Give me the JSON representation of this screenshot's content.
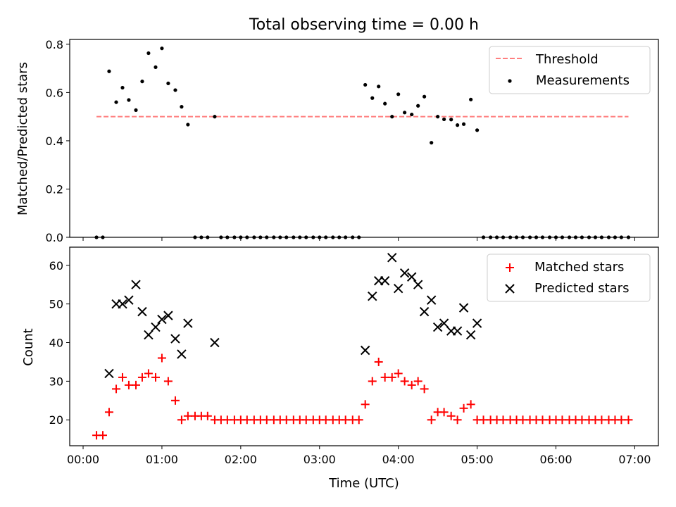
{
  "figure": {
    "title": "Total observing time = 0.00 h"
  },
  "chart_data": [
    {
      "type": "scatter",
      "ylabel": "Matched/Predicted stars",
      "ylim": [
        0,
        0.82
      ],
      "xlim": [
        -0.17,
        7.3
      ],
      "yticks": [
        0.0,
        0.2,
        0.4,
        0.6,
        0.8
      ],
      "ytick_labels": [
        "0.0",
        "0.2",
        "0.4",
        "0.6",
        "0.8"
      ],
      "grid": false,
      "legend": {
        "location": "top-right",
        "entries": [
          "Threshold",
          "Measurements"
        ]
      },
      "threshold": {
        "name": "Threshold",
        "y": 0.5,
        "x_range": [
          0.17,
          6.92
        ],
        "color": "#ff7f7f",
        "style": "dashed"
      },
      "series": [
        {
          "name": "Measurements",
          "marker": "dot",
          "color": "#000000",
          "x": [
            0.17,
            0.25,
            0.33,
            0.42,
            0.5,
            0.58,
            0.67,
            0.75,
            0.83,
            0.92,
            1.0,
            1.08,
            1.17,
            1.25,
            1.33,
            1.42,
            1.5,
            1.58,
            1.67,
            1.75,
            1.83,
            1.92,
            2.0,
            2.08,
            2.17,
            2.25,
            2.33,
            2.42,
            2.5,
            2.58,
            2.67,
            2.75,
            2.83,
            2.92,
            3.0,
            3.08,
            3.17,
            3.25,
            3.33,
            3.42,
            3.5,
            3.58,
            3.67,
            3.75,
            3.83,
            3.92,
            4.0,
            4.08,
            4.17,
            4.25,
            4.33,
            4.42,
            4.5,
            4.58,
            4.67,
            4.75,
            4.83,
            4.92,
            5.0,
            5.08,
            5.17,
            5.25,
            5.33,
            5.42,
            5.5,
            5.58,
            5.67,
            5.75,
            5.83,
            5.92,
            6.0,
            6.08,
            6.17,
            6.25,
            6.33,
            6.42,
            6.5,
            6.58,
            6.67,
            6.75,
            6.83,
            6.92
          ],
          "y": [
            0,
            0,
            0.688,
            0.56,
            0.62,
            0.569,
            0.527,
            0.646,
            0.763,
            0.705,
            0.783,
            0.638,
            0.61,
            0.541,
            0.467,
            0,
            0,
            0,
            0.5,
            0,
            0,
            0,
            0,
            0,
            0,
            0,
            0,
            0,
            0,
            0,
            0,
            0,
            0,
            0,
            0,
            0,
            0,
            0,
            0,
            0,
            0,
            0.632,
            0.577,
            0.625,
            0.554,
            0.5,
            0.593,
            0.517,
            0.509,
            0.545,
            0.583,
            0.392,
            0.5,
            0.489,
            0.488,
            0.465,
            0.469,
            0.571,
            0.444,
            0,
            0,
            0,
            0,
            0,
            0,
            0,
            0,
            0,
            0,
            0,
            0,
            0,
            0,
            0,
            0,
            0,
            0,
            0,
            0,
            0,
            0,
            0
          ]
        }
      ]
    },
    {
      "type": "scatter",
      "xlabel": "Time (UTC)",
      "ylabel": "Count",
      "ylim": [
        13.3,
        64.7
      ],
      "xlim": [
        -0.17,
        7.3
      ],
      "yticks": [
        20,
        30,
        40,
        50,
        60
      ],
      "ytick_labels": [
        "20",
        "30",
        "40",
        "50",
        "60"
      ],
      "xticks": [
        0,
        1,
        2,
        3,
        4,
        5,
        6,
        7
      ],
      "xtick_labels": [
        "00:00",
        "01:00",
        "02:00",
        "03:00",
        "04:00",
        "05:00",
        "06:00",
        "07:00"
      ],
      "grid": false,
      "legend": {
        "location": "top-right",
        "entries": [
          "Matched stars",
          "Predicted stars"
        ]
      },
      "series": [
        {
          "name": "Matched stars",
          "marker": "plus",
          "color": "#ff0000",
          "x": [
            0.17,
            0.25,
            0.33,
            0.42,
            0.5,
            0.58,
            0.67,
            0.75,
            0.83,
            0.92,
            1.0,
            1.08,
            1.17,
            1.25,
            1.33,
            1.42,
            1.5,
            1.58,
            1.67,
            1.75,
            1.83,
            1.92,
            2.0,
            2.08,
            2.17,
            2.25,
            2.33,
            2.42,
            2.5,
            2.58,
            2.67,
            2.75,
            2.83,
            2.92,
            3.0,
            3.08,
            3.17,
            3.25,
            3.33,
            3.42,
            3.5,
            3.58,
            3.67,
            3.75,
            3.83,
            3.92,
            4.0,
            4.08,
            4.17,
            4.25,
            4.33,
            4.42,
            4.5,
            4.58,
            4.67,
            4.75,
            4.83,
            4.92,
            5.0,
            5.08,
            5.17,
            5.25,
            5.33,
            5.42,
            5.5,
            5.58,
            5.67,
            5.75,
            5.83,
            5.92,
            6.0,
            6.08,
            6.17,
            6.25,
            6.33,
            6.42,
            6.5,
            6.58,
            6.67,
            6.75,
            6.83,
            6.92
          ],
          "y": [
            16,
            16,
            22,
            28,
            31,
            29,
            29,
            31,
            32,
            31,
            36,
            30,
            25,
            20,
            21,
            21,
            21,
            21,
            20,
            20,
            20,
            20,
            20,
            20,
            20,
            20,
            20,
            20,
            20,
            20,
            20,
            20,
            20,
            20,
            20,
            20,
            20,
            20,
            20,
            20,
            20,
            24,
            30,
            35,
            31,
            31,
            32,
            30,
            29,
            30,
            28,
            20,
            22,
            22,
            21,
            20,
            23,
            24,
            20,
            20,
            20,
            20,
            20,
            20,
            20,
            20,
            20,
            20,
            20,
            20,
            20,
            20,
            20,
            20,
            20,
            20,
            20,
            20,
            20,
            20,
            20,
            20
          ]
        },
        {
          "name": "Predicted stars",
          "marker": "x",
          "color": "#000000",
          "x": [
            0.33,
            0.42,
            0.5,
            0.58,
            0.67,
            0.75,
            0.83,
            0.92,
            1.0,
            1.08,
            1.17,
            1.25,
            1.33,
            1.67,
            3.58,
            3.67,
            3.75,
            3.83,
            3.92,
            4.0,
            4.08,
            4.17,
            4.25,
            4.33,
            4.42,
            4.5,
            4.58,
            4.67,
            4.75,
            4.83,
            4.92,
            5.0
          ],
          "y": [
            32,
            50,
            50,
            51,
            55,
            48,
            42,
            44,
            46,
            47,
            41,
            37,
            45,
            40,
            38,
            52,
            56,
            56,
            62,
            54,
            58,
            57,
            55,
            48,
            51,
            44,
            45,
            43,
            43,
            49,
            42,
            45
          ]
        }
      ]
    }
  ]
}
